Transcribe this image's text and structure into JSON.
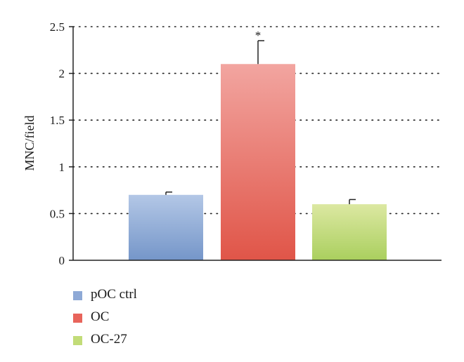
{
  "chart_data": {
    "type": "bar",
    "categories": [
      "pOC ctrl",
      "OC",
      "OC-27"
    ],
    "values": [
      0.7,
      2.1,
      0.6
    ],
    "errors": [
      0.03,
      0.25,
      0.05
    ],
    "colors_top": [
      "#b3c7e6",
      "#f2a5a0",
      "#dce8a2"
    ],
    "colors_bottom": [
      "#7596c9",
      "#e05548",
      "#aacf5e"
    ],
    "annotations": [
      "",
      "*",
      ""
    ],
    "ylabel": "MNC/field",
    "xlabel": "",
    "ylim": [
      0,
      2.5
    ],
    "yticks": [
      0,
      0.5,
      1,
      1.5,
      2,
      2.5
    ],
    "ytick_labels": [
      "0",
      "0.5",
      "1",
      "1.5",
      "2",
      "2.5"
    ],
    "grid": "horizontal dotted",
    "legend": {
      "placement": "bottom-left",
      "items": [
        {
          "label": "pOC ctrl",
          "color": "#8ea9d6"
        },
        {
          "label": "OC",
          "color": "#e8645b"
        },
        {
          "label": "OC-27",
          "color": "#c2dc78"
        }
      ]
    }
  }
}
